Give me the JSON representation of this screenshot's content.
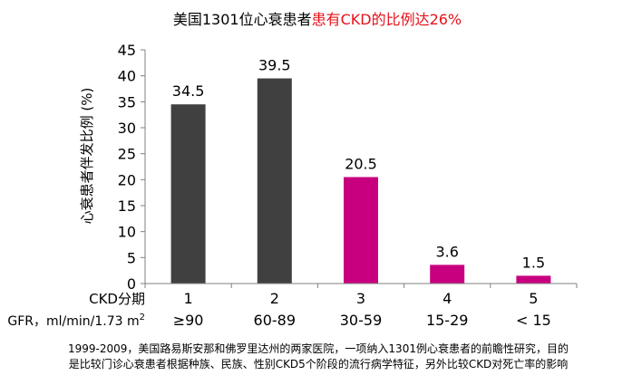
{
  "chart_data": {
    "type": "bar",
    "title": {
      "part1": "美国1301位心衰患者",
      "part2": "患有CKD的比例达26%"
    },
    "ylabel": "心衰患者伴发比例 (%)",
    "ylim": [
      0,
      45
    ],
    "yticks": [
      0,
      5,
      10,
      15,
      20,
      25,
      30,
      35,
      40,
      45
    ],
    "grid": false,
    "categories": [
      "1",
      "2",
      "3",
      "4",
      "5"
    ],
    "gfr_ranges": [
      "≥90",
      "60-89",
      "30-59",
      "15-29",
      "< 15"
    ],
    "values": [
      34.5,
      39.5,
      20.5,
      3.6,
      1.5
    ],
    "value_labels": [
      "34.5",
      "39.5",
      "20.5",
      "3.6",
      "1.5"
    ],
    "bar_colors": [
      "#404040",
      "#404040",
      "#c8007f",
      "#c8007f",
      "#c8007f"
    ],
    "row_labels": {
      "stage": "CKD分期",
      "gfr_prefix": "GFR，ml/min/1.73  m",
      "gfr_sup": "2"
    }
  },
  "colors": {
    "title_black": "#000000",
    "title_red": "#e8101a",
    "dark_bar": "#404040",
    "magenta_bar": "#c8007f"
  },
  "footnote": {
    "line1": "1999-2009，美国路易斯安那和佛罗里达州的两家医院，一项纳入1301例心衰患者的前瞻性研究，目的",
    "line2": "是比较门诊心衰患者根据种族、民族、性别CKD5个阶段的流行病学特征，另外比较CKD对死亡率的影响"
  }
}
